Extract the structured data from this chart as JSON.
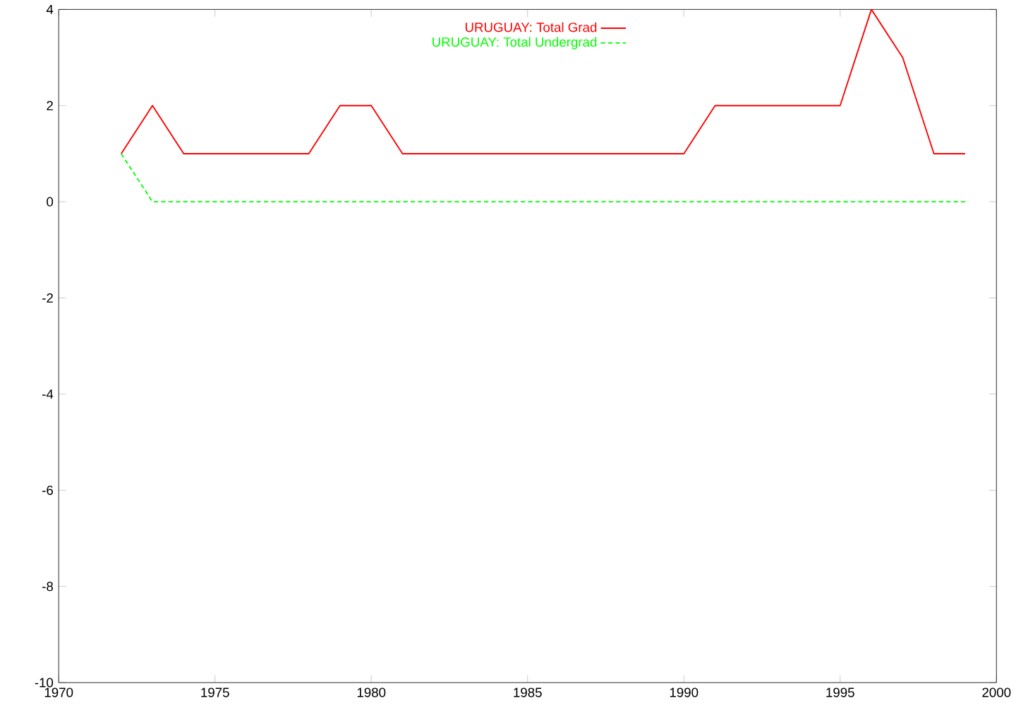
{
  "chart_data": {
    "type": "line",
    "x": [
      1972,
      1973,
      1974,
      1975,
      1976,
      1977,
      1978,
      1979,
      1980,
      1981,
      1982,
      1983,
      1984,
      1985,
      1986,
      1987,
      1988,
      1989,
      1990,
      1991,
      1992,
      1993,
      1994,
      1995,
      1996,
      1997,
      1998,
      1999
    ],
    "series": [
      {
        "name": "URUGUAY: Total Grad",
        "color": "#ff0000",
        "line_style": "solid",
        "values": [
          1,
          2,
          1,
          1,
          1,
          1,
          1,
          2,
          2,
          1,
          1,
          1,
          1,
          1,
          1,
          1,
          1,
          1,
          1,
          2,
          2,
          2,
          2,
          2,
          4,
          3,
          1,
          1
        ]
      },
      {
        "name": "URUGUAY: Total Undergrad",
        "color": "#00ff00",
        "line_style": "dashed",
        "values": [
          1,
          0,
          0,
          0,
          0,
          0,
          0,
          0,
          0,
          0,
          0,
          0,
          0,
          0,
          0,
          0,
          0,
          0,
          0,
          0,
          0,
          0,
          0,
          0,
          0,
          0,
          0,
          0
        ]
      }
    ],
    "xlim": [
      1970,
      2000
    ],
    "xticks": [
      1970,
      1975,
      1980,
      1985,
      1990,
      1995,
      2000
    ],
    "ylim": [
      -10,
      4
    ],
    "yticks": [
      -10,
      -8,
      -6,
      -4,
      -2,
      0,
      2,
      4
    ],
    "grid": false,
    "legend": "top",
    "marker": "none"
  }
}
